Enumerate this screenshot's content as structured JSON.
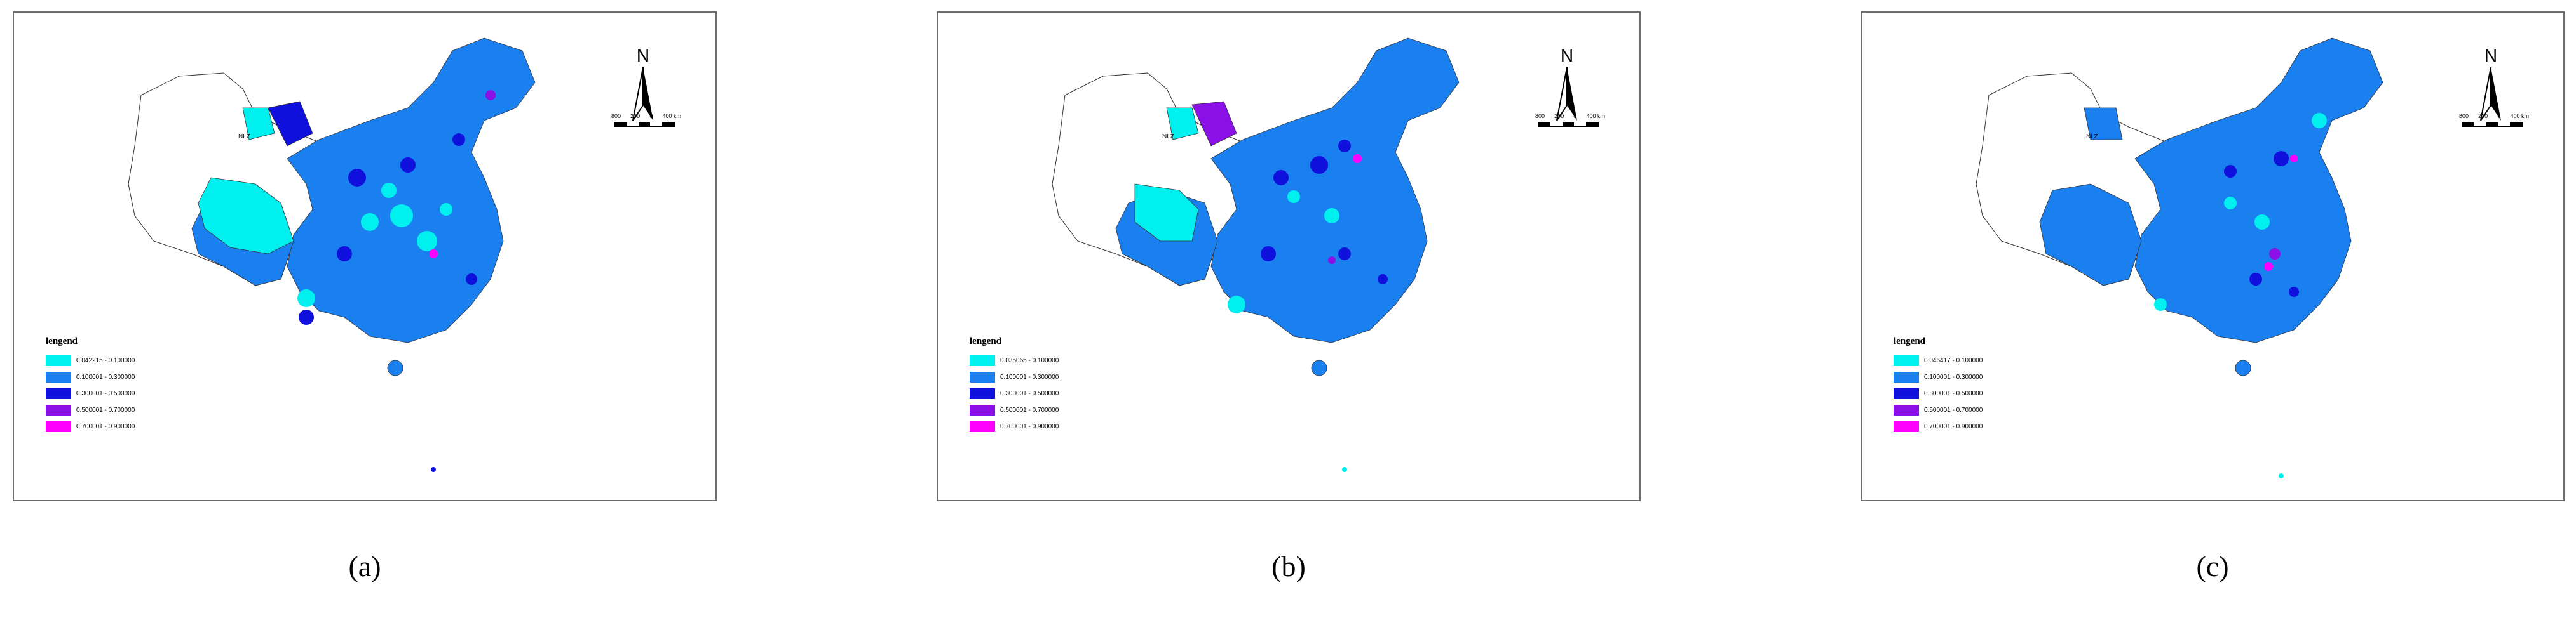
{
  "panels": [
    {
      "caption": "(a)",
      "north_label": "N",
      "scale_ticks": [
        "800",
        "200",
        "0",
        "400 km"
      ],
      "legend": {
        "title": "lengend",
        "items": [
          {
            "label": "0.042215 - 0.100000",
            "color": "#00f0f0"
          },
          {
            "label": "0.100001 - 0.300000",
            "color": "#1a7fef"
          },
          {
            "label": "0.300001 - 0.500000",
            "color": "#1010dc"
          },
          {
            "label": "0.500001 - 0.700000",
            "color": "#8a10e6"
          },
          {
            "label": "0.700001 - 0.900000",
            "color": "#ff00ff"
          }
        ]
      },
      "region_label": "NI Z"
    },
    {
      "caption": "(b)",
      "north_label": "N",
      "scale_ticks": [
        "800",
        "200",
        "0",
        "400 km"
      ],
      "legend": {
        "title": "lengend",
        "items": [
          {
            "label": "0.035065 - 0.100000",
            "color": "#00f0f0"
          },
          {
            "label": "0.100001 - 0.300000",
            "color": "#1a7fef"
          },
          {
            "label": "0.300001 - 0.500000",
            "color": "#1010dc"
          },
          {
            "label": "0.500001 - 0.700000",
            "color": "#8a10e6"
          },
          {
            "label": "0.700001 - 0.900000",
            "color": "#ff00ff"
          }
        ]
      },
      "region_label": "NI Z"
    },
    {
      "caption": "(c)",
      "north_label": "N",
      "scale_ticks": [
        "800",
        "200",
        "0",
        "400 km"
      ],
      "legend": {
        "title": "lengend",
        "items": [
          {
            "label": "0.046417 - 0.100000",
            "color": "#00f0f0"
          },
          {
            "label": "0.100001 - 0.300000",
            "color": "#1a7fef"
          },
          {
            "label": "0.300001 - 0.500000",
            "color": "#1010dc"
          },
          {
            "label": "0.500001 - 0.700000",
            "color": "#8a10e6"
          },
          {
            "label": "0.700001 - 0.900000",
            "color": "#ff00ff"
          }
        ]
      },
      "region_label": "NI Z"
    }
  ]
}
